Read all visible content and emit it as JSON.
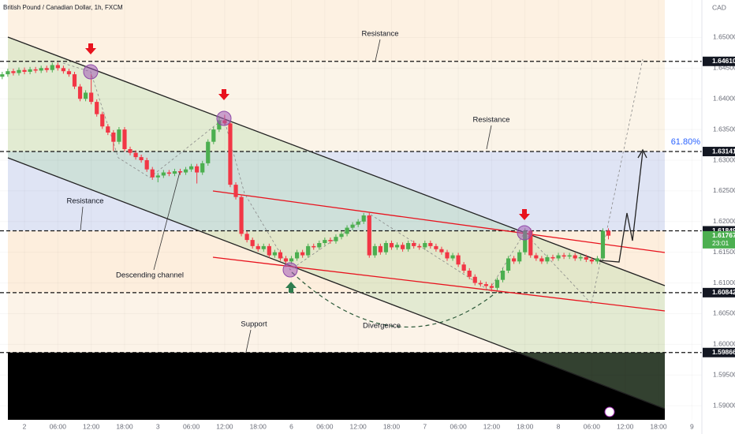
{
  "chart_data": {
    "type": "candlestick",
    "title": "British Pound / Canadian Dollar, 1h, FXCM",
    "currency": "CAD",
    "up_color": "#4caf50",
    "down_color": "#f23645",
    "xlim": [
      -4.4,
      121.8
    ],
    "ylim": [
      1.5877,
      1.6561
    ],
    "xticks": [
      {
        "value": 0,
        "label": "2"
      },
      {
        "value": 6,
        "label": "06:00"
      },
      {
        "value": 12,
        "label": "12:00"
      },
      {
        "value": 18,
        "label": "18:00"
      },
      {
        "value": 24,
        "label": "3"
      },
      {
        "value": 30,
        "label": "06:00"
      },
      {
        "value": 36,
        "label": "12:00"
      },
      {
        "value": 42,
        "label": "18:00"
      },
      {
        "value": 48,
        "label": "6"
      },
      {
        "value": 54,
        "label": "06:00"
      },
      {
        "value": 60,
        "label": "12:00"
      },
      {
        "value": 66,
        "label": "18:00"
      },
      {
        "value": 72,
        "label": "7"
      },
      {
        "value": 78,
        "label": "06:00"
      },
      {
        "value": 84,
        "label": "12:00"
      },
      {
        "value": 90,
        "label": "18:00"
      },
      {
        "value": 96,
        "label": "8"
      },
      {
        "value": 102,
        "label": "06:00"
      },
      {
        "value": 108,
        "label": "12:00"
      },
      {
        "value": 114,
        "label": "18:00"
      },
      {
        "value": 120,
        "label": "9"
      }
    ],
    "yticks": [
      {
        "value": 1.59,
        "label": "1.59000"
      },
      {
        "value": 1.595,
        "label": "1.59500"
      },
      {
        "value": 1.6,
        "label": "1.60000"
      },
      {
        "value": 1.605,
        "label": "1.60500"
      },
      {
        "value": 1.61,
        "label": "1.61000"
      },
      {
        "value": 1.615,
        "label": "1.61500"
      },
      {
        "value": 1.62,
        "label": "1.62000"
      },
      {
        "value": 1.625,
        "label": "1.62500"
      },
      {
        "value": 1.63,
        "label": "1.63000"
      },
      {
        "value": 1.635,
        "label": "1.63500"
      },
      {
        "value": 1.64,
        "label": "1.64000"
      },
      {
        "value": 1.645,
        "label": "1.64500"
      },
      {
        "value": 1.65,
        "label": "1.65000"
      }
    ],
    "levels": [
      {
        "value": 1.6461,
        "label": "1.64610"
      },
      {
        "value": 1.63141,
        "label": "1.63141"
      },
      {
        "value": 1.61849,
        "label": "1.61849"
      },
      {
        "value": 1.60842,
        "label": "1.60842"
      },
      {
        "value": 1.59866,
        "label": "1.59866"
      }
    ],
    "current": {
      "value": 1.61767,
      "label": "1.61767",
      "time": "23:01"
    },
    "fib_label": "61.80%",
    "annotations": [
      "Resistance",
      "Resistance",
      "Resistance",
      "Descending channel",
      "Support",
      "Divergence"
    ],
    "x": [
      -4,
      -3,
      -2,
      -1,
      0,
      1,
      2,
      3,
      4,
      5,
      6,
      7,
      8,
      9,
      10,
      11,
      12,
      13,
      14,
      15,
      16,
      17,
      18,
      19,
      20,
      21,
      22,
      23,
      24,
      25,
      26,
      27,
      28,
      29,
      30,
      31,
      32,
      33,
      34,
      35,
      36,
      37,
      38,
      39,
      40,
      41,
      42,
      43,
      44,
      45,
      46,
      47,
      48,
      49,
      50,
      51,
      52,
      53,
      54,
      55,
      56,
      57,
      58,
      59,
      60,
      61,
      62,
      63,
      64,
      65,
      66,
      67,
      68,
      69,
      70,
      71,
      72,
      73,
      74,
      75,
      76,
      77,
      78,
      79,
      80,
      81,
      82,
      83,
      84,
      85,
      86,
      87,
      88,
      89,
      90,
      91,
      92,
      93,
      94,
      95,
      96,
      97,
      98,
      99,
      100,
      101,
      102,
      103,
      104,
      105
    ],
    "ohlc": [
      [
        1.6436,
        1.6444,
        1.6432,
        1.644
      ],
      [
        1.644,
        1.6449,
        1.6436,
        1.6445
      ],
      [
        1.6445,
        1.6449,
        1.6438,
        1.6442
      ],
      [
        1.6442,
        1.6451,
        1.6438,
        1.6447
      ],
      [
        1.6447,
        1.6451,
        1.644,
        1.6444
      ],
      [
        1.6444,
        1.6452,
        1.644,
        1.6448
      ],
      [
        1.6448,
        1.6452,
        1.6442,
        1.6446
      ],
      [
        1.6446,
        1.6454,
        1.6442,
        1.645
      ],
      [
        1.645,
        1.6454,
        1.6443,
        1.6447
      ],
      [
        1.6447,
        1.6459,
        1.6443,
        1.6455
      ],
      [
        1.6455,
        1.6459,
        1.6446,
        1.645
      ],
      [
        1.645,
        1.6454,
        1.6441,
        1.6445
      ],
      [
        1.6445,
        1.6449,
        1.6436,
        1.644
      ],
      [
        1.644,
        1.6444,
        1.6416,
        1.642
      ],
      [
        1.642,
        1.6424,
        1.6396,
        1.64
      ],
      [
        1.64,
        1.6414,
        1.6396,
        1.641
      ],
      [
        1.641,
        1.644,
        1.6391,
        1.6395
      ],
      [
        1.6395,
        1.6399,
        1.6371,
        1.6375
      ],
      [
        1.6375,
        1.6379,
        1.6351,
        1.6355
      ],
      [
        1.6355,
        1.6359,
        1.6341,
        1.6345
      ],
      [
        1.6345,
        1.6349,
        1.6315,
        1.633
      ],
      [
        1.633,
        1.6354,
        1.6326,
        1.635
      ],
      [
        1.635,
        1.6354,
        1.6314,
        1.6318
      ],
      [
        1.6318,
        1.6322,
        1.6308,
        1.6312
      ],
      [
        1.6312,
        1.6316,
        1.6301,
        1.6305
      ],
      [
        1.6305,
        1.6309,
        1.6296,
        1.63
      ],
      [
        1.63,
        1.6304,
        1.6281,
        1.6285
      ],
      [
        1.6285,
        1.6289,
        1.6268,
        1.6272
      ],
      [
        1.6272,
        1.6279,
        1.6264,
        1.6275
      ],
      [
        1.6275,
        1.6284,
        1.6271,
        1.628
      ],
      [
        1.628,
        1.6284,
        1.6274,
        1.6278
      ],
      [
        1.6278,
        1.6286,
        1.6274,
        1.6282
      ],
      [
        1.6282,
        1.6286,
        1.6276,
        1.628
      ],
      [
        1.628,
        1.6289,
        1.6276,
        1.6285
      ],
      [
        1.6285,
        1.6294,
        1.6281,
        1.629
      ],
      [
        1.629,
        1.6294,
        1.6262,
        1.628
      ],
      [
        1.628,
        1.6299,
        1.6276,
        1.6295
      ],
      [
        1.6295,
        1.6334,
        1.6291,
        1.633
      ],
      [
        1.633,
        1.6354,
        1.6326,
        1.635
      ],
      [
        1.635,
        1.6372,
        1.6346,
        1.6365
      ],
      [
        1.6365,
        1.6374,
        1.6356,
        1.636
      ],
      [
        1.636,
        1.6364,
        1.6256,
        1.626
      ],
      [
        1.626,
        1.6264,
        1.6236,
        1.624
      ],
      [
        1.624,
        1.6244,
        1.6176,
        1.618
      ],
      [
        1.618,
        1.6184,
        1.6166,
        1.617
      ],
      [
        1.617,
        1.6174,
        1.6156,
        1.616
      ],
      [
        1.616,
        1.6164,
        1.6151,
        1.6155
      ],
      [
        1.6155,
        1.6164,
        1.6151,
        1.616
      ],
      [
        1.616,
        1.6164,
        1.6141,
        1.6145
      ],
      [
        1.6145,
        1.6154,
        1.6141,
        1.615
      ],
      [
        1.615,
        1.6154,
        1.6136,
        1.614
      ],
      [
        1.614,
        1.6144,
        1.6126,
        1.6135
      ],
      [
        1.6135,
        1.6144,
        1.6131,
        1.614
      ],
      [
        1.614,
        1.6154,
        1.6136,
        1.615
      ],
      [
        1.615,
        1.6154,
        1.6141,
        1.6145
      ],
      [
        1.6145,
        1.6164,
        1.6141,
        1.616
      ],
      [
        1.616,
        1.6164,
        1.6154,
        1.6158
      ],
      [
        1.6158,
        1.6169,
        1.6154,
        1.6165
      ],
      [
        1.6165,
        1.6174,
        1.6161,
        1.617
      ],
      [
        1.617,
        1.6174,
        1.6164,
        1.6168
      ],
      [
        1.6168,
        1.6179,
        1.6164,
        1.6175
      ],
      [
        1.6175,
        1.6184,
        1.6171,
        1.618
      ],
      [
        1.618,
        1.6194,
        1.6176,
        1.619
      ],
      [
        1.619,
        1.6199,
        1.6186,
        1.6195
      ],
      [
        1.6195,
        1.6204,
        1.6191,
        1.62
      ],
      [
        1.62,
        1.6214,
        1.6196,
        1.621
      ],
      [
        1.621,
        1.6214,
        1.6141,
        1.6145
      ],
      [
        1.6145,
        1.6164,
        1.6141,
        1.616
      ],
      [
        1.616,
        1.6164,
        1.6146,
        1.615
      ],
      [
        1.615,
        1.6169,
        1.6146,
        1.6165
      ],
      [
        1.6165,
        1.6169,
        1.6154,
        1.6158
      ],
      [
        1.6158,
        1.6166,
        1.6154,
        1.6162
      ],
      [
        1.6162,
        1.6166,
        1.6151,
        1.6155
      ],
      [
        1.6155,
        1.6169,
        1.6151,
        1.6165
      ],
      [
        1.6165,
        1.6169,
        1.6156,
        1.616
      ],
      [
        1.616,
        1.6164,
        1.6154,
        1.6158
      ],
      [
        1.6158,
        1.6169,
        1.6154,
        1.6165
      ],
      [
        1.6165,
        1.6169,
        1.6156,
        1.616
      ],
      [
        1.616,
        1.6164,
        1.6151,
        1.6155
      ],
      [
        1.6155,
        1.6159,
        1.6146,
        1.615
      ],
      [
        1.615,
        1.6154,
        1.6136,
        1.614
      ],
      [
        1.614,
        1.6149,
        1.6136,
        1.6145
      ],
      [
        1.6145,
        1.6149,
        1.6126,
        1.613
      ],
      [
        1.613,
        1.6134,
        1.6116,
        1.612
      ],
      [
        1.612,
        1.6124,
        1.6106,
        1.611
      ],
      [
        1.611,
        1.6114,
        1.6096,
        1.61
      ],
      [
        1.61,
        1.6104,
        1.6094,
        1.6098
      ],
      [
        1.6098,
        1.6102,
        1.6091,
        1.6095
      ],
      [
        1.6095,
        1.6099,
        1.6086,
        1.6092
      ],
      [
        1.6092,
        1.6109,
        1.6088,
        1.6105
      ],
      [
        1.6105,
        1.6124,
        1.6101,
        1.612
      ],
      [
        1.612,
        1.6144,
        1.6116,
        1.614
      ],
      [
        1.614,
        1.6144,
        1.6131,
        1.6135
      ],
      [
        1.6135,
        1.6154,
        1.6131,
        1.615
      ],
      [
        1.615,
        1.6189,
        1.6146,
        1.6185
      ],
      [
        1.6185,
        1.6189,
        1.6141,
        1.6145
      ],
      [
        1.6145,
        1.6149,
        1.6136,
        1.614
      ],
      [
        1.614,
        1.6144,
        1.6131,
        1.6135
      ],
      [
        1.6135,
        1.6146,
        1.6131,
        1.6142
      ],
      [
        1.6142,
        1.6146,
        1.6136,
        1.614
      ],
      [
        1.614,
        1.6149,
        1.6136,
        1.6145
      ],
      [
        1.6145,
        1.6149,
        1.6139,
        1.6143
      ],
      [
        1.6143,
        1.6149,
        1.6139,
        1.6145
      ],
      [
        1.6145,
        1.6149,
        1.6136,
        1.614
      ],
      [
        1.614,
        1.6146,
        1.6136,
        1.6142
      ],
      [
        1.6142,
        1.6146,
        1.6134,
        1.6138
      ],
      [
        1.6138,
        1.6142,
        1.6131,
        1.6135
      ],
      [
        1.6135,
        1.6144,
        1.6131,
        1.614
      ],
      [
        1.614,
        1.6189,
        1.6136,
        1.6185
      ],
      [
        1.6185,
        1.6189,
        1.6171,
        1.6177
      ]
    ]
  }
}
